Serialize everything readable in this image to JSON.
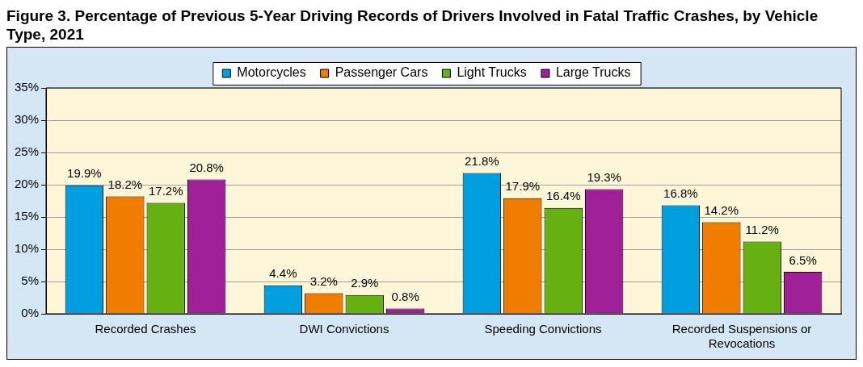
{
  "chart_data": {
    "type": "bar",
    "title": "Figure 3. Percentage of Previous 5-Year Driving Records of Drivers Involved in Fatal Traffic Crashes, by Vehicle Type, 2021",
    "categories": [
      "Recorded Crashes",
      "DWI Convictions",
      "Speeding Convictions",
      "Recorded Suspensions or Revocations"
    ],
    "series": [
      {
        "name": "Motorcycles",
        "color": "#00a0e0",
        "values": [
          19.9,
          4.4,
          21.8,
          16.8
        ],
        "value_labels": [
          "19.9%",
          "4.4%",
          "21.8%",
          "16.8%"
        ]
      },
      {
        "name": "Passenger Cars",
        "color": "#f07c00",
        "values": [
          18.2,
          3.2,
          17.9,
          14.2
        ],
        "value_labels": [
          "18.2%",
          "3.2%",
          "17.9%",
          "14.2%"
        ]
      },
      {
        "name": "Light Trucks",
        "color": "#66b012",
        "values": [
          17.2,
          2.9,
          16.4,
          11.2
        ],
        "value_labels": [
          "17.2%",
          "2.9%",
          "16.4%",
          "11.2%"
        ]
      },
      {
        "name": "Large Trucks",
        "color": "#a0209a",
        "values": [
          20.8,
          0.8,
          19.3,
          6.5
        ],
        "value_labels": [
          "20.8%",
          "0.8%",
          "19.3%",
          "6.5%"
        ]
      }
    ],
    "ylim": [
      0,
      35
    ],
    "yticks": [
      {
        "value": 0,
        "label": "0%"
      },
      {
        "value": 5,
        "label": "5%"
      },
      {
        "value": 10,
        "label": "10%"
      },
      {
        "value": 15,
        "label": "15%"
      },
      {
        "value": 20,
        "label": "20%"
      },
      {
        "value": 25,
        "label": "25%"
      },
      {
        "value": 30,
        "label": "30%"
      },
      {
        "value": 35,
        "label": "35%"
      }
    ],
    "grid": "y",
    "legend": "top"
  }
}
